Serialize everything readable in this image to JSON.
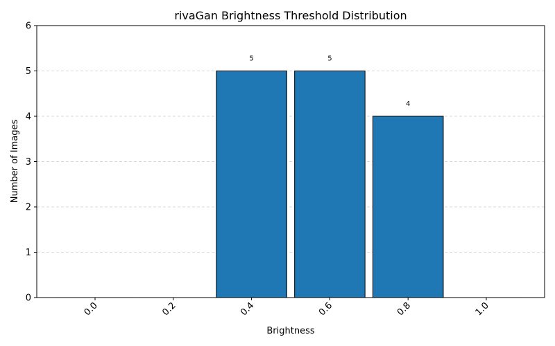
{
  "chart_data": {
    "type": "bar",
    "title": "rivaGan Brightness Threshold Distribution",
    "xlabel": "Brightness",
    "ylabel": "Number of Images",
    "categories": [
      "0.0",
      "0.2",
      "0.4",
      "0.6",
      "0.8",
      "1.0"
    ],
    "values": [
      0,
      0,
      5,
      5,
      4,
      0
    ],
    "data_labels": [
      "",
      "",
      "5",
      "5",
      "4",
      ""
    ],
    "ylim": [
      0,
      6
    ],
    "yticks": [
      "0",
      "1",
      "2",
      "3",
      "4",
      "5",
      "6"
    ],
    "grid": "y-dashed",
    "bar_color": "#1f77b4",
    "edge_color": "#000000"
  }
}
